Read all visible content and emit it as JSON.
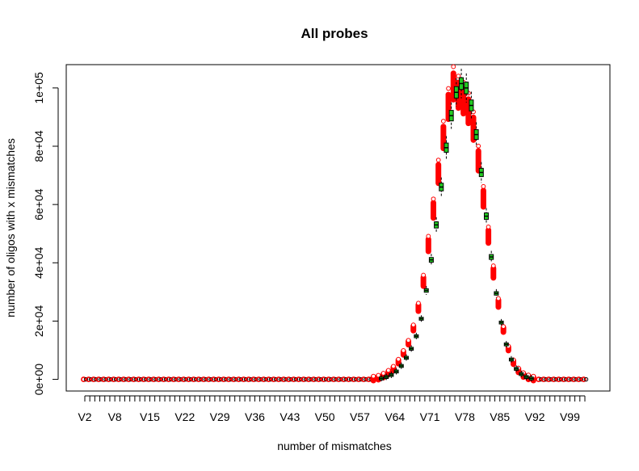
{
  "chart_data": {
    "type": "box",
    "title": "All probes",
    "xlabel": "number of mismatches",
    "ylabel": "number of oligos with x mismatches",
    "ylim": [
      -4000,
      108000
    ],
    "y_ticks": [
      0,
      20000,
      40000,
      60000,
      80000,
      100000
    ],
    "y_tick_labels": [
      "0e+00",
      "2e+04",
      "4e+04",
      "6e+04",
      "8e+04",
      "1e+05"
    ],
    "categories_range": [
      "V2",
      "V102"
    ],
    "x_tick_labels": [
      "V2",
      "V8",
      "V15",
      "V22",
      "V29",
      "V36",
      "V43",
      "V50",
      "V57",
      "V64",
      "V71",
      "V78",
      "V85",
      "V92",
      "V99"
    ],
    "x_tick_label_indices": [
      1,
      7,
      14,
      21,
      28,
      35,
      42,
      49,
      56,
      63,
      70,
      77,
      84,
      91,
      98
    ],
    "series": [
      {
        "color": "#00cc00",
        "comment_free": true,
        "x": [
          "V61",
          "V62",
          "V63",
          "V64",
          "V65",
          "V66",
          "V67",
          "V68",
          "V69",
          "V70",
          "V71",
          "V72",
          "V73",
          "V74",
          "V75",
          "V76",
          "V77",
          "V78",
          "V79",
          "V80",
          "V81",
          "V82",
          "V83",
          "V84",
          "V85",
          "V86",
          "V87",
          "V88",
          "V89",
          "V90",
          "V91"
        ],
        "median": [
          300,
          800,
          1500,
          2700,
          4600,
          7400,
          10500,
          14800,
          20800,
          30500,
          41000,
          53000,
          66000,
          79500,
          90500,
          98500,
          101500,
          100000,
          94000,
          84000,
          71000,
          56000,
          42000,
          29500,
          19500,
          12000,
          6800,
          3600,
          1800,
          800,
          300
        ]
      },
      {
        "color": "#ff0000",
        "x": [
          "V60",
          "V61",
          "V62",
          "V63",
          "V64",
          "V65",
          "V66",
          "V67",
          "V68",
          "V69",
          "V70",
          "V71",
          "V72",
          "V73",
          "V74",
          "V75",
          "V76",
          "V77",
          "V78",
          "V79",
          "V80",
          "V81",
          "V82",
          "V83",
          "V84",
          "V85",
          "V86",
          "V87",
          "V88",
          "V89",
          "V90",
          "V91",
          "V92"
        ],
        "median": [
          200,
          500,
          1200,
          2200,
          3600,
          6000,
          9000,
          12500,
          17500,
          24500,
          33500,
          46000,
          58000,
          70500,
          83000,
          93500,
          100500,
          97500,
          95500,
          92000,
          86000,
          75000,
          62000,
          49000,
          36500,
          26000,
          17000,
          10500,
          5800,
          3000,
          1400,
          600,
          200
        ]
      }
    ],
    "legend": "none",
    "grid": false
  }
}
